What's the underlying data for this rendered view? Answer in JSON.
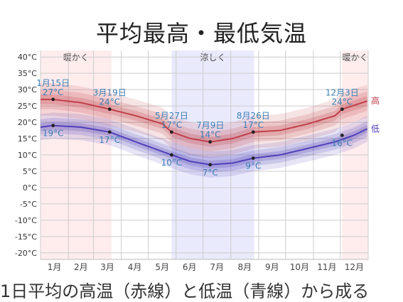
{
  "chart_data": {
    "type": "area",
    "title": "平均最高・最低気温",
    "months": [
      "1月",
      "2月",
      "3月",
      "4月",
      "5月",
      "6月",
      "7月",
      "8月",
      "9月",
      "10月",
      "11月",
      "12月"
    ],
    "y_ticks": [
      "40°C",
      "35°C",
      "30°C",
      "25°C",
      "20°C",
      "15°C",
      "10°C",
      "5°C",
      "0°C",
      "-5°C",
      "-10°C",
      "-15°C",
      "-20°C"
    ],
    "ylim": [
      -22,
      42
    ],
    "grid": true,
    "seasons": [
      {
        "label": "暖かく",
        "start": "1月1日",
        "end": "3月20日",
        "color": "#ff9aa0"
      },
      {
        "label": "涼しく",
        "start": "5月27日",
        "end": "8月26日",
        "color": "#8c8cf2"
      },
      {
        "label": "暖かく",
        "start": "12月3日",
        "end": "12月31日",
        "color": "#ff9aa0"
      }
    ],
    "series": [
      {
        "name": "高",
        "color": "#c0404a",
        "points": [
          [
            15,
            27
          ],
          [
            46,
            26
          ],
          [
            78,
            24
          ],
          [
            107,
            22
          ],
          [
            137,
            19.5
          ],
          [
            147,
            17
          ],
          [
            168,
            15
          ],
          [
            190,
            14
          ],
          [
            215,
            15
          ],
          [
            238,
            17
          ],
          [
            268,
            17.5
          ],
          [
            299,
            19.5
          ],
          [
            329,
            22
          ],
          [
            337,
            24
          ],
          [
            365,
            26.5
          ]
        ],
        "band": [
          5,
          3
        ]
      },
      {
        "name": "低",
        "color": "#5040b8",
        "points": [
          [
            1,
            18.5
          ],
          [
            15,
            19
          ],
          [
            46,
            18.5
          ],
          [
            78,
            17
          ],
          [
            107,
            14
          ],
          [
            137,
            11
          ],
          [
            147,
            10
          ],
          [
            168,
            8
          ],
          [
            190,
            7
          ],
          [
            215,
            7.5
          ],
          [
            238,
            9
          ],
          [
            268,
            10
          ],
          [
            299,
            12
          ],
          [
            329,
            14
          ],
          [
            350,
            16
          ],
          [
            365,
            18
          ]
        ],
        "band": [
          4,
          4
        ]
      }
    ],
    "annotations": [
      {
        "date": "1月15日",
        "value": "27°C",
        "series": 0,
        "day": 15,
        "temp": 27
      },
      {
        "date": "3月19日",
        "value": "24°C",
        "series": 0,
        "day": 78,
        "temp": 24
      },
      {
        "date": "5月27日",
        "value": "17°C",
        "series": 0,
        "day": 147,
        "temp": 17
      },
      {
        "date": "7月9日",
        "value": "14°C",
        "series": 0,
        "day": 190,
        "temp": 14
      },
      {
        "date": "8月26日",
        "value": "17°C",
        "series": 0,
        "day": 238,
        "temp": 17
      },
      {
        "date": "12月3日",
        "value": "24°C",
        "series": 0,
        "day": 337,
        "temp": 24
      },
      {
        "date": "",
        "value": "19°C",
        "series": 1,
        "day": 15,
        "temp": 19
      },
      {
        "date": "",
        "value": "17°C",
        "series": 1,
        "day": 78,
        "temp": 17
      },
      {
        "date": "",
        "value": "10°C",
        "series": 1,
        "day": 147,
        "temp": 10
      },
      {
        "date": "",
        "value": "7°C",
        "series": 1,
        "day": 190,
        "temp": 7
      },
      {
        "date": "",
        "value": "9°C",
        "series": 1,
        "day": 238,
        "temp": 9
      },
      {
        "date": "",
        "value": "16°C",
        "series": 1,
        "day": 337,
        "temp": 16
      }
    ]
  },
  "footer_text": "1日平均の高温（赤線）と低温（青線）から成る"
}
